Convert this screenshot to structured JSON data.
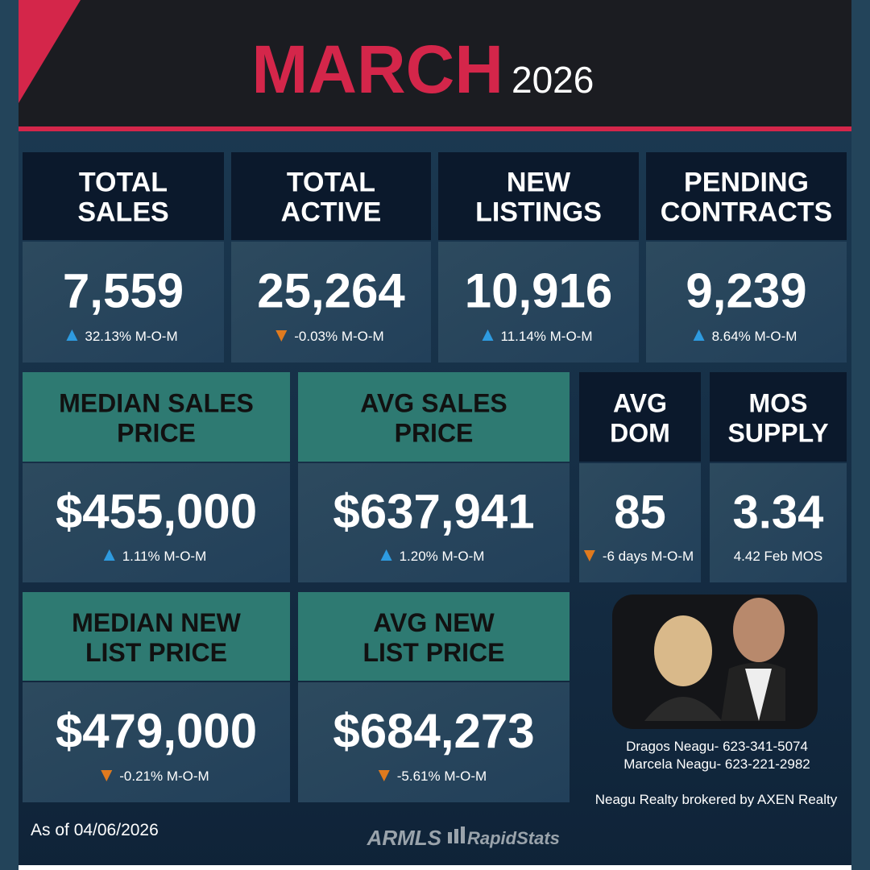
{
  "header": {
    "month": "MARCH",
    "year": "2026"
  },
  "cards": [
    {
      "title": [
        "TOTAL",
        "SALES"
      ],
      "value": "7,559",
      "change": "32.13% M-O-M"
    },
    {
      "title": [
        "TOTAL",
        "ACTIVE"
      ],
      "value": "25,264",
      "change": "-0.03% M-O-M"
    },
    {
      "title": [
        "NEW",
        "LISTINGS"
      ],
      "value": "10,916",
      "change": "11.14% M-O-M"
    },
    {
      "title": [
        "PENDING",
        "CONTRACTS"
      ],
      "value": "9,239",
      "change": "8.64% M-O-M"
    },
    {
      "title": [
        "MEDIAN SALES",
        "PRICE"
      ],
      "value": "$455,000",
      "change": "1.11% M-O-M"
    },
    {
      "title": [
        "AVG SALES",
        "PRICE"
      ],
      "value": "$637,941",
      "change": "1.20% M-O-M"
    },
    {
      "title": [
        "AVG",
        "DOM"
      ],
      "value": "85",
      "change": "-6 days M-O-M"
    },
    {
      "title": [
        "MOS",
        "SUPPLY"
      ],
      "value": "3.34",
      "change": "4.42 Feb MOS"
    },
    {
      "title": [
        "MEDIAN NEW",
        "LIST PRICE"
      ],
      "value": "$479,000",
      "change": "-0.21% M-O-M"
    },
    {
      "title": [
        "AVG NEW",
        "LIST PRICE"
      ],
      "value": "$684,273",
      "change": "-5.61% M-O-M"
    }
  ],
  "contacts": [
    "Dragos Neagu- 623-341-5074",
    "Marcela Neagu- 623-221-2982"
  ],
  "brokerage": "Neagu Realty brokered by AXEN Realty",
  "as_of": "As of 04/06/2026",
  "logo": {
    "armls": "ARMLS",
    "rapidstats": "RapidStats"
  }
}
